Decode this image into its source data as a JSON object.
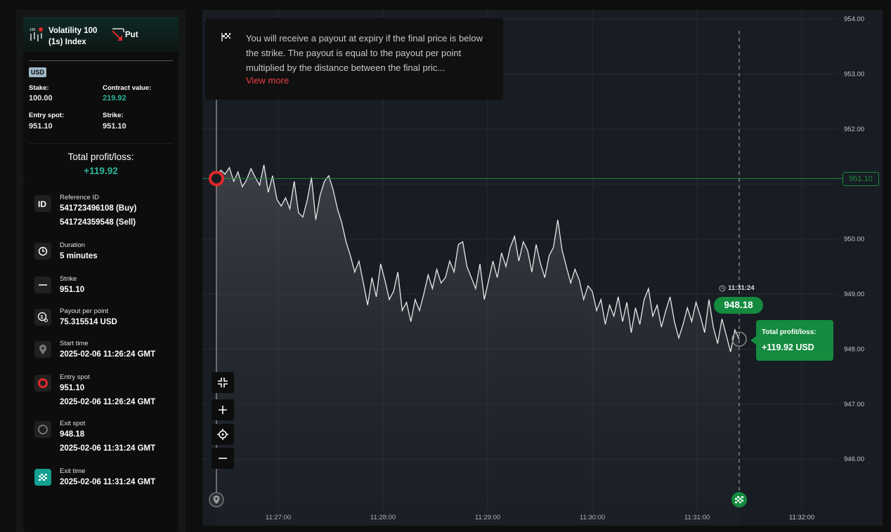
{
  "contract": {
    "symbol_line1": "Volatility 100",
    "symbol_line2": "(1s) Index",
    "symbol_badge": "100",
    "type": "Put",
    "currency_badge": "USD",
    "stake_label": "Stake:",
    "stake_value": "100.00",
    "contract_value_label": "Contract value:",
    "contract_value": "219.92",
    "entry_spot_label": "Entry spot:",
    "entry_spot_value": "951.10",
    "strike_label": "Strike:",
    "strike_value": "951.10",
    "total_pl_label": "Total profit/loss:",
    "total_pl_value": "+119.92"
  },
  "details": [
    {
      "icon": "id-icon",
      "label": "Reference ID",
      "values": [
        "541723496108 (Buy)",
        "541724359548 (Sell)"
      ]
    },
    {
      "icon": "clock-icon",
      "label": "Duration",
      "values": [
        "5 minutes"
      ]
    },
    {
      "icon": "strike-icon",
      "label": "Strike",
      "values": [
        "951.10"
      ]
    },
    {
      "icon": "payout-icon",
      "label": "Payout per point",
      "values": [
        "75.315514 USD"
      ]
    },
    {
      "icon": "location-pin-icon",
      "label": "Start time",
      "values": [
        "2025-02-06 11:26:24 GMT"
      ]
    },
    {
      "icon": "entry-spot-icon",
      "label": "Entry spot",
      "values": [
        "951.10",
        "2025-02-06 11:26:24 GMT"
      ]
    },
    {
      "icon": "exit-spot-icon",
      "label": "Exit spot",
      "values": [
        "948.18",
        "2025-02-06 11:31:24 GMT"
      ]
    },
    {
      "icon": "checkered-flag-icon",
      "label": "Exit time",
      "values": [
        "2025-02-06 11:31:24 GMT"
      ]
    }
  ],
  "info": {
    "text": "You will receive a payout at expiry if the final price is below the strike. The payout is equal to the payout per point multiplied by the distance between the final pric...",
    "link": "View more"
  },
  "chart": {
    "strike_badge": "951.10",
    "exit_time": "11:31:24",
    "exit_price": "948.18",
    "pl_label": "Total profit/loss:",
    "pl_value": "+119.92 USD",
    "colors": {
      "line": "#e8e8e8",
      "strike": "#1b8b3a",
      "entry": "#e1282c",
      "profit": "#148b3f"
    }
  },
  "chart_data": {
    "type": "area",
    "x_ticks": [
      "11:27:00",
      "11:28:00",
      "11:29:00",
      "11:30:00",
      "11:31:00",
      "11:32:00"
    ],
    "y_ticks": [
      "954.00",
      "953.00",
      "952.00",
      "951.00",
      "950.00",
      "949.00",
      "948.00",
      "947.00",
      "946.00"
    ],
    "ylim": [
      945.3,
      954.2
    ],
    "strike": 951.1,
    "series": [
      {
        "values": [
          951.1,
          951.25,
          951.18,
          951.3,
          951.05,
          951.22,
          950.95,
          951.08,
          951.28,
          951.12,
          950.98,
          951.35,
          950.85,
          951.15,
          950.72,
          950.6,
          950.75,
          950.55,
          951.05,
          950.48,
          950.4,
          950.7,
          951.12,
          950.35,
          950.8,
          951.05,
          951.15,
          950.9,
          950.55,
          950.3,
          949.95,
          949.7,
          949.4,
          949.6,
          949.2,
          948.8,
          949.3,
          948.95,
          949.55,
          949.25,
          948.9,
          949.05,
          949.4,
          948.7,
          948.85,
          948.5,
          948.9,
          948.7,
          949.0,
          949.35,
          949.1,
          949.45,
          949.2,
          949.3,
          949.6,
          949.4,
          949.9,
          949.95,
          949.5,
          949.3,
          949.1,
          949.55,
          948.9,
          949.25,
          949.6,
          949.3,
          949.75,
          949.5,
          949.85,
          950.05,
          949.6,
          949.95,
          949.8,
          949.4,
          949.9,
          949.55,
          949.3,
          949.7,
          949.85,
          950.35,
          949.8,
          949.5,
          949.2,
          949.45,
          949.25,
          948.9,
          949.15,
          949.05,
          948.7,
          948.9,
          948.45,
          948.8,
          948.6,
          948.95,
          948.5,
          948.85,
          948.3,
          948.75,
          948.45,
          948.9,
          949.1,
          948.6,
          948.8,
          948.4,
          948.7,
          948.95,
          948.5,
          948.2,
          948.45,
          948.75,
          948.5,
          948.85,
          948.6,
          948.3,
          948.9,
          948.4,
          948.1,
          948.55,
          948.25,
          947.95,
          948.35,
          948.18
        ]
      }
    ]
  }
}
